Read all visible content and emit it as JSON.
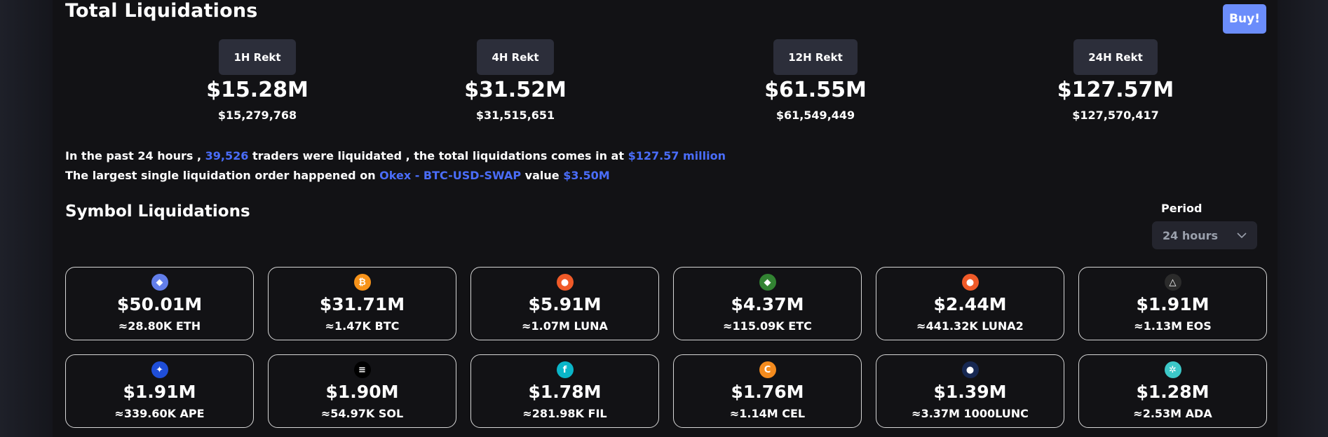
{
  "header": {
    "title": "Total Liquidations",
    "buy_label": "Buy!"
  },
  "rekt": [
    {
      "label": "1H Rekt",
      "value": "$15.28M",
      "exact": "$15,279,768"
    },
    {
      "label": "4H Rekt",
      "value": "$31.52M",
      "exact": "$31,515,651"
    },
    {
      "label": "12H Rekt",
      "value": "$61.55M",
      "exact": "$61,549,449"
    },
    {
      "label": "24H Rekt",
      "value": "$127.57M",
      "exact": "$127,570,417"
    }
  ],
  "summary": {
    "l1_a": "In the past 24 hours ,",
    "l1_count": "39,526",
    "l1_b": "traders were liquidated , the total liquidations comes in at",
    "l1_total": "$127.57 million",
    "l2_a": "The largest single liquidation order happened on",
    "l2_order": "Okex - BTC-USD-SWAP",
    "l2_b": "value",
    "l2_value": "$3.50M"
  },
  "symbols": {
    "title": "Symbol Liquidations",
    "period_label": "Period",
    "period_value": "24 hours",
    "cards": [
      {
        "icon": "eth-icon",
        "color": "#627eea",
        "glyph": "◆",
        "value": "$50.01M",
        "amount": "≈28.80K ETH"
      },
      {
        "icon": "btc-icon",
        "color": "#f7931a",
        "glyph": "₿",
        "value": "$31.71M",
        "amount": "≈1.47K BTC"
      },
      {
        "icon": "luna-icon",
        "color": "#f05a28",
        "glyph": "●",
        "value": "$5.91M",
        "amount": "≈1.07M LUNA"
      },
      {
        "icon": "etc-icon",
        "color": "#328332",
        "glyph": "◆",
        "value": "$4.37M",
        "amount": "≈115.09K ETC"
      },
      {
        "icon": "luna2-icon",
        "color": "#f05a28",
        "glyph": "●",
        "value": "$2.44M",
        "amount": "≈441.32K LUNA2"
      },
      {
        "icon": "eos-icon",
        "color": "#2b2b2b",
        "glyph": "△",
        "value": "$1.91M",
        "amount": "≈1.13M EOS"
      },
      {
        "icon": "ape-icon",
        "color": "#1f4ed8",
        "glyph": "✦",
        "value": "$1.91M",
        "amount": "≈339.60K APE"
      },
      {
        "icon": "sol-icon",
        "color": "#000000",
        "glyph": "≡",
        "value": "$1.90M",
        "amount": "≈54.97K SOL"
      },
      {
        "icon": "fil-icon",
        "color": "#0ab5c8",
        "glyph": "f",
        "value": "$1.78M",
        "amount": "≈281.98K FIL"
      },
      {
        "icon": "cel-icon",
        "color": "#f48b1e",
        "glyph": "C",
        "value": "$1.76M",
        "amount": "≈1.14M CEL"
      },
      {
        "icon": "lunc-icon",
        "color": "#172852",
        "glyph": "●",
        "value": "$1.39M",
        "amount": "≈3.37M 1000LUNC"
      },
      {
        "icon": "ada-icon",
        "color": "#3cc8c8",
        "glyph": "✲",
        "value": "$1.28M",
        "amount": "≈2.53M ADA"
      }
    ]
  }
}
